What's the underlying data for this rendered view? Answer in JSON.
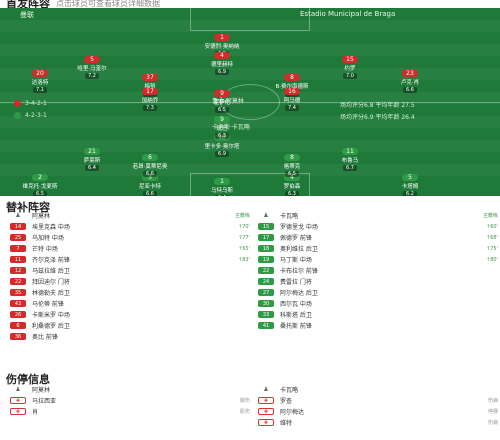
{
  "lineup": {
    "title": "首发阵容",
    "subtitle": "点击球员可查看球员详细数据",
    "home_team": "曼联",
    "away_team": "Estadio Municipal de Braga",
    "home_formation": "3-4-2-1",
    "home_coach": "鲁本·阿莫林",
    "away_formation": "4-2-3-1",
    "away_coach": "卡洛斯·卡瓦略",
    "home_stat": "场均评分6.8 平均年龄 27.5",
    "away_stat": "场均评分6.9 平均年龄 26.4",
    "home_players": [
      {
        "num": "1",
        "name": "安德烈·奥纳纳",
        "rating": "6.8"
      },
      {
        "num": "5",
        "name": "哈里·马奎尔",
        "rating": "7.2"
      },
      {
        "num": "4",
        "name": "德里赫特",
        "rating": "6.9"
      },
      {
        "num": "15",
        "name": "约罗",
        "rating": "7.0"
      },
      {
        "num": "20",
        "name": "达洛特",
        "rating": "7.1"
      },
      {
        "num": "37",
        "name": "梅努",
        "rating": "6.7"
      },
      {
        "num": "8",
        "name": "B·费尔南德斯",
        "rating": "7.6"
      },
      {
        "num": "23",
        "name": "卢克·肖",
        "rating": "6.6"
      },
      {
        "num": "17",
        "name": "加纳乔",
        "rating": "7.3"
      },
      {
        "num": "16",
        "name": "阿马德",
        "rating": "7.4"
      },
      {
        "num": "9",
        "name": "霍伊伦",
        "rating": "6.5"
      }
    ],
    "away_players": [
      {
        "num": "1",
        "name": "马特乌斯",
        "rating": "6.4"
      },
      {
        "num": "2",
        "name": "维克托·戈麦斯",
        "rating": "6.5"
      },
      {
        "num": "3",
        "name": "尼亚卡特",
        "rating": "6.6"
      },
      {
        "num": "4",
        "name": "罗伯森",
        "rating": "6.3"
      },
      {
        "num": "5",
        "name": "卡塔姆",
        "rating": "6.2"
      },
      {
        "num": "6",
        "name": "若昂·莫蒂尼奥",
        "rating": "6.6"
      },
      {
        "num": "8",
        "name": "格蒂克",
        "rating": "6.5"
      },
      {
        "num": "10",
        "name": "里卡多·奥尔塔",
        "rating": "6.9"
      },
      {
        "num": "21",
        "name": "萨莱斯",
        "rating": "6.4"
      },
      {
        "num": "11",
        "name": "布鲁马",
        "rating": "6.7"
      },
      {
        "num": "9",
        "name": "班巴",
        "rating": "6.3"
      }
    ]
  },
  "subs": {
    "title": "替补阵容",
    "home_coach_label": "阿莫林",
    "home_coach_role": "主教练",
    "away_coach_label": "卡瓦略",
    "away_coach_role": "主教练",
    "home": [
      {
        "num": "14",
        "name": "埃里克森",
        "pos": "中场",
        "minute": "↑70'"
      },
      {
        "num": "25",
        "name": "乌加特",
        "pos": "中场",
        "minute": "↑77'"
      },
      {
        "num": "7",
        "name": "芒特",
        "pos": "中场",
        "minute": "↑65'"
      },
      {
        "num": "11",
        "name": "齐尔克泽",
        "pos": "前锋",
        "minute": "↑83'"
      },
      {
        "num": "12",
        "name": "马兹拉维",
        "pos": "后卫",
        "minute": ""
      },
      {
        "num": "22",
        "name": "拜因迪尔",
        "pos": "门将",
        "minute": ""
      },
      {
        "num": "35",
        "name": "林德勒夫",
        "pos": "后卫",
        "minute": ""
      },
      {
        "num": "43",
        "name": "马伦蒂",
        "pos": "前锋",
        "minute": ""
      },
      {
        "num": "26",
        "name": "卡斯米罗",
        "pos": "中场",
        "minute": ""
      },
      {
        "num": "6",
        "name": "利桑德罗",
        "pos": "后卫",
        "minute": ""
      },
      {
        "num": "36",
        "name": "奥比",
        "pos": "前锋",
        "minute": ""
      }
    ],
    "away": [
      {
        "num": "15",
        "name": "罗德里戈",
        "pos": "中场",
        "minute": "↑60'"
      },
      {
        "num": "17",
        "name": "佩德罗",
        "pos": "前锋",
        "minute": "↑68'"
      },
      {
        "num": "18",
        "name": "奥利维拉",
        "pos": "后卫",
        "minute": "↑75'"
      },
      {
        "num": "19",
        "name": "马丁斯",
        "pos": "中场",
        "minute": "↑80'"
      },
      {
        "num": "22",
        "name": "卡布拉尔",
        "pos": "前锋",
        "minute": ""
      },
      {
        "num": "24",
        "name": "费雷拉",
        "pos": "门将",
        "minute": ""
      },
      {
        "num": "27",
        "name": "阿尔梅达",
        "pos": "后卫",
        "minute": ""
      },
      {
        "num": "30",
        "name": "西尔瓦",
        "pos": "中场",
        "minute": ""
      },
      {
        "num": "33",
        "name": "科斯塔",
        "pos": "后卫",
        "minute": ""
      },
      {
        "num": "41",
        "name": "桑托斯",
        "pos": "前锋",
        "minute": ""
      }
    ]
  },
  "injuries": {
    "title": "伤停信息",
    "home_coach": "阿莫林",
    "away_coach": "卡瓦略",
    "home": [
      {
        "name": "马拉西亚",
        "reason": "膝伤"
      },
      {
        "name": "肖",
        "reason": "肌伤"
      }
    ],
    "away": [
      {
        "name": "罗查",
        "reason": "伤病"
      },
      {
        "name": "阿尔梅达",
        "reason": "停赛"
      },
      {
        "name": "维特",
        "reason": "伤病"
      }
    ]
  },
  "colors": {
    "home": "#d42a2a",
    "away": "#2f9b46",
    "pitch": "#1f7a3a"
  }
}
